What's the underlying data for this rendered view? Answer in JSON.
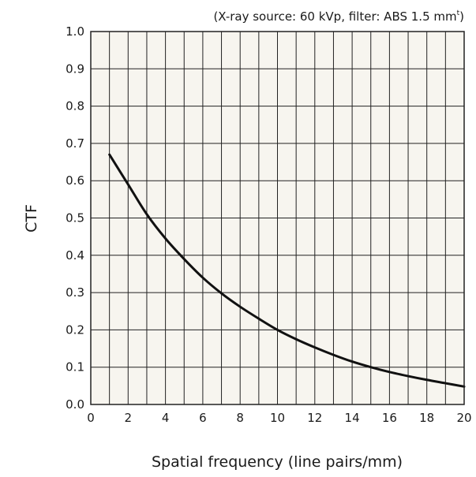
{
  "chart_data": {
    "type": "line",
    "title": "",
    "annotation": {
      "main": "(X-ray source: 60 kVp, filter: ABS 1.5 mm",
      "superscript": "t",
      "close": ")"
    },
    "xlabel": "Spatial frequency (line pairs/mm)",
    "ylabel": "CTF",
    "xlim": [
      0,
      20
    ],
    "ylim": [
      0,
      1.0
    ],
    "x_ticks": [
      "0",
      "2",
      "4",
      "6",
      "8",
      "10",
      "12",
      "14",
      "16",
      "18",
      "20"
    ],
    "y_ticks": [
      "0.0",
      "0.1",
      "0.2",
      "0.3",
      "0.4",
      "0.5",
      "0.6",
      "0.7",
      "0.8",
      "0.9",
      "1.0"
    ],
    "grid": true,
    "legend": "none",
    "series": [
      {
        "x": [
          1,
          2,
          3,
          4,
          5,
          6,
          7,
          8,
          9,
          10,
          11,
          12,
          13,
          14,
          15,
          16,
          17,
          18,
          19,
          20
        ],
        "y": [
          0.67,
          0.59,
          0.51,
          0.445,
          0.39,
          0.34,
          0.298,
          0.262,
          0.23,
          0.2,
          0.175,
          0.153,
          0.133,
          0.115,
          0.1,
          0.087,
          0.076,
          0.066,
          0.057,
          0.048
        ]
      }
    ]
  },
  "colors": {
    "plot_background": "#f7f5ef",
    "grid": "#222222",
    "line": "#111111"
  }
}
